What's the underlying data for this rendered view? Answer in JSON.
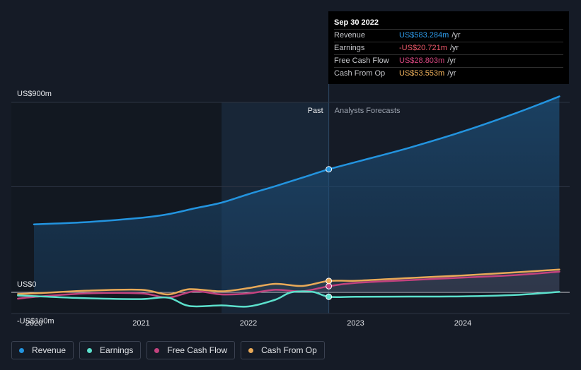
{
  "tooltip": {
    "date": "Sep 30 2022",
    "rows": [
      {
        "label": "Revenue",
        "value": "US$583.284m",
        "unit": "/yr",
        "color": "#2e9bea"
      },
      {
        "label": "Earnings",
        "value": "-US$20.721m",
        "unit": "/yr",
        "color": "#f15b6c"
      },
      {
        "label": "Free Cash Flow",
        "value": "US$28.803m",
        "unit": "/yr",
        "color": "#d6467f"
      },
      {
        "label": "Cash From Op",
        "value": "US$53.553m",
        "unit": "/yr",
        "color": "#f0b25c"
      }
    ]
  },
  "labels": {
    "past": "Past",
    "forecast": "Analysts Forecasts"
  },
  "legend": [
    {
      "label": "Revenue",
      "color": "#2394df"
    },
    {
      "label": "Earnings",
      "color": "#5ce0cc"
    },
    {
      "label": "Free Cash Flow",
      "color": "#c2427e"
    },
    {
      "label": "Cash From Op",
      "color": "#e8a958"
    }
  ],
  "chart_data": {
    "type": "line",
    "title": "",
    "xlabel": "",
    "ylabel": "",
    "ylim": [
      -100,
      900
    ],
    "xlim": [
      2019.85,
      2024.9
    ],
    "y_tick_labels": [
      {
        "value": 900,
        "label": "US$900m"
      },
      {
        "value": 0,
        "label": "US$0"
      },
      {
        "value": -100,
        "label": "-US$100m"
      }
    ],
    "gridlines": [
      900,
      500,
      0,
      -100
    ],
    "x_ticks": [
      {
        "value": 2020,
        "label": "2020"
      },
      {
        "value": 2021,
        "label": "2021"
      },
      {
        "value": 2022,
        "label": "2022"
      },
      {
        "value": 2023,
        "label": "2023"
      },
      {
        "value": 2024,
        "label": "2024"
      }
    ],
    "past_start": 2021.75,
    "divider": 2022.75,
    "series": [
      {
        "name": "Revenue",
        "color": "#2394df",
        "fill": true,
        "x": [
          2020.0,
          2020.5,
          2021.0,
          2021.25,
          2021.5,
          2021.75,
          2022.0,
          2022.25,
          2022.5,
          2022.75,
          2023.0,
          2023.5,
          2024.0,
          2024.5,
          2024.9
        ],
        "y": [
          322,
          333,
          353,
          370,
          398,
          425,
          465,
          503,
          543,
          583,
          617,
          685,
          762,
          850,
          928
        ]
      },
      {
        "name": "Earnings",
        "color": "#5ce0cc",
        "fill": false,
        "x": [
          2019.85,
          2020.0,
          2020.5,
          2021.0,
          2021.25,
          2021.45,
          2021.75,
          2022.0,
          2022.25,
          2022.4,
          2022.6,
          2022.75,
          2023.0,
          2023.5,
          2024.0,
          2024.5,
          2024.9
        ],
        "y": [
          -15,
          -18,
          -28,
          -32,
          -25,
          -65,
          -62,
          -67,
          -35,
          0,
          2,
          -21,
          -21,
          -20,
          -19,
          -12,
          2
        ]
      },
      {
        "name": "Free Cash Flow",
        "color": "#c2427e",
        "fill": false,
        "x": [
          2019.85,
          2020.0,
          2020.5,
          2021.0,
          2021.25,
          2021.5,
          2021.75,
          2022.0,
          2022.25,
          2022.5,
          2022.75,
          2023.0,
          2023.5,
          2024.0,
          2024.5,
          2024.9
        ],
        "y": [
          -30,
          -22,
          -5,
          -5,
          -25,
          5,
          -10,
          -5,
          12,
          5,
          29,
          45,
          58,
          70,
          82,
          98
        ]
      },
      {
        "name": "Cash From Op",
        "color": "#e8a958",
        "fill": false,
        "x": [
          2019.85,
          2020.0,
          2020.5,
          2021.0,
          2021.25,
          2021.45,
          2021.75,
          2022.0,
          2022.25,
          2022.5,
          2022.75,
          2023.0,
          2023.5,
          2024.0,
          2024.5,
          2024.9
        ],
        "y": [
          -8,
          -5,
          8,
          12,
          -10,
          15,
          5,
          20,
          40,
          30,
          54,
          55,
          68,
          80,
          95,
          108
        ]
      }
    ]
  }
}
